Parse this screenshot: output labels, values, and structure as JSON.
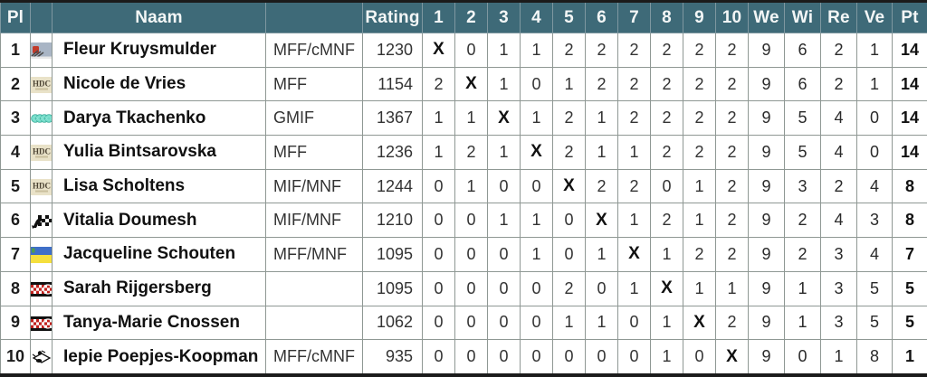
{
  "colors": {
    "header_bg": "#3e6a78",
    "header_text": "#f3f6f6",
    "grid_line": "#8f9894",
    "outer_border": "#1b1b1b",
    "body_bg": "#ffffff",
    "ukraine_blue": "#3f6fc8",
    "ukraine_yellow": "#f5df3d",
    "checker_red": "#c2231f",
    "hdc_beige": "#e9e2c8",
    "teal_circle": "#6fd9c6"
  },
  "table": {
    "header": {
      "pl": "Pl",
      "icon": "",
      "naam": "Naam",
      "title": "",
      "rating": "Rating",
      "rounds": [
        "1",
        "2",
        "3",
        "4",
        "5",
        "6",
        "7",
        "8",
        "9",
        "10"
      ],
      "we": "We",
      "wi": "Wi",
      "re": "Re",
      "ve": "Ve",
      "pt": "Pt"
    },
    "rows": [
      {
        "pl": "1",
        "icon": "kruysmulder-club-logo-icon",
        "name": "Fleur Kruysmulder",
        "title": "MFF/cMNF",
        "rating": "1230",
        "rounds": [
          "X",
          "0",
          "1",
          "1",
          "2",
          "2",
          "2",
          "2",
          "2",
          "2"
        ],
        "we": "9",
        "wi": "6",
        "re": "2",
        "ve": "1",
        "pt": "14"
      },
      {
        "pl": "2",
        "icon": "hdc-club-logo-icon",
        "name": "Nicole de Vries",
        "title": "MFF",
        "rating": "1154",
        "rounds": [
          "2",
          "X",
          "1",
          "0",
          "1",
          "2",
          "2",
          "2",
          "2",
          "2"
        ],
        "we": "9",
        "wi": "6",
        "re": "2",
        "ve": "1",
        "pt": "14"
      },
      {
        "pl": "3",
        "icon": "teal-circles-club-logo-icon",
        "name": "Darya Tkachenko",
        "title": "GMIF",
        "rating": "1367",
        "rounds": [
          "1",
          "1",
          "X",
          "1",
          "2",
          "1",
          "2",
          "2",
          "2",
          "2"
        ],
        "we": "9",
        "wi": "5",
        "re": "4",
        "ve": "0",
        "pt": "14"
      },
      {
        "pl": "4",
        "icon": "hdc-club-logo-icon",
        "name": "Yulia Bintsarovska",
        "title": "MFF",
        "rating": "1236",
        "rounds": [
          "1",
          "2",
          "1",
          "X",
          "2",
          "1",
          "1",
          "2",
          "2",
          "2"
        ],
        "we": "9",
        "wi": "5",
        "re": "4",
        "ve": "0",
        "pt": "14"
      },
      {
        "pl": "5",
        "icon": "hdc-club-logo-icon",
        "name": "Lisa Scholtens",
        "title": "MIF/MNF",
        "rating": "1244",
        "rounds": [
          "0",
          "1",
          "0",
          "0",
          "X",
          "2",
          "2",
          "0",
          "1",
          "2"
        ],
        "we": "9",
        "wi": "3",
        "re": "2",
        "ve": "4",
        "pt": "8"
      },
      {
        "pl": "6",
        "icon": "knight-checker-club-logo-icon",
        "name": "Vitalia Doumesh",
        "title": "MIF/MNF",
        "rating": "1210",
        "rounds": [
          "0",
          "0",
          "1",
          "1",
          "0",
          "X",
          "1",
          "2",
          "1",
          "2"
        ],
        "we": "9",
        "wi": "2",
        "re": "4",
        "ve": "3",
        "pt": "8"
      },
      {
        "pl": "7",
        "icon": "ukraine-flag-icon",
        "name": "Jacqueline Schouten",
        "title": "MFF/MNF",
        "rating": "1095",
        "rounds": [
          "0",
          "0",
          "0",
          "1",
          "0",
          "1",
          "X",
          "1",
          "2",
          "2"
        ],
        "we": "9",
        "wi": "2",
        "re": "3",
        "ve": "4",
        "pt": "7"
      },
      {
        "pl": "8",
        "icon": "red-checker-club-logo-icon",
        "name": "Sarah Rijgersberg",
        "title": "",
        "rating": "1095",
        "rounds": [
          "0",
          "0",
          "0",
          "0",
          "2",
          "0",
          "1",
          "X",
          "1",
          "1"
        ],
        "we": "9",
        "wi": "1",
        "re": "3",
        "ve": "5",
        "pt": "5"
      },
      {
        "pl": "9",
        "icon": "red-checker-club-logo-icon",
        "name": "Tanya-Marie Cnossen",
        "title": "",
        "rating": "1062",
        "rounds": [
          "0",
          "0",
          "0",
          "0",
          "1",
          "1",
          "0",
          "1",
          "X",
          "2"
        ],
        "we": "9",
        "wi": "1",
        "re": "3",
        "ve": "5",
        "pt": "5"
      },
      {
        "pl": "10",
        "icon": "sketch-club-logo-icon",
        "name": "Iepie Poepjes-Koopman",
        "title": "MFF/cMNF",
        "rating": "935",
        "rounds": [
          "0",
          "0",
          "0",
          "0",
          "0",
          "0",
          "0",
          "1",
          "0",
          "X"
        ],
        "we": "9",
        "wi": "0",
        "re": "1",
        "ve": "8",
        "pt": "1"
      }
    ]
  }
}
